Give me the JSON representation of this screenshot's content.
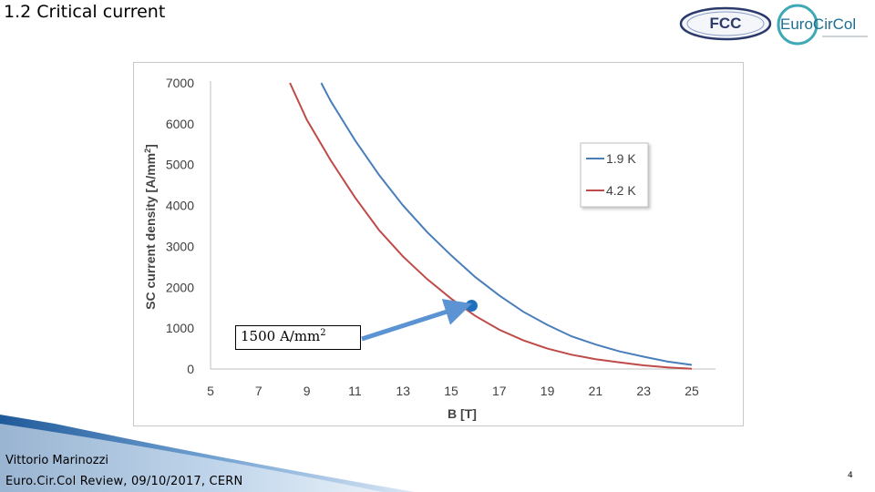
{
  "slide": {
    "title": "1.2 Critical current",
    "author": "Vittorio Marinozzi",
    "event": "Euro.Cir.Col Review, 09/10/2017,  CERN",
    "page_number": "4"
  },
  "logos": {
    "fcc_text": "FCC",
    "eurocircol_text_a": "Euro",
    "eurocircol_text_b": "CirCol"
  },
  "callout": {
    "value_text": "1500 A/mm",
    "superscript": "2"
  },
  "chart_data": {
    "type": "line",
    "xlabel": "B [T]",
    "ylabel": "SC current density [A/mm",
    "ylabel_sup": "2",
    "ylabel_close": "]",
    "xlim": [
      5,
      25
    ],
    "ylim": [
      0,
      7000
    ],
    "x_ticks": [
      5,
      7,
      9,
      11,
      13,
      15,
      17,
      19,
      21,
      23,
      25
    ],
    "y_ticks": [
      0,
      1000,
      2000,
      3000,
      4000,
      5000,
      6000,
      7000
    ],
    "legend_position": "top-right",
    "grid": false,
    "series": [
      {
        "name": "1.9 K",
        "color": "#4a7ebb",
        "points": [
          [
            9.6,
            7000
          ],
          [
            10,
            6550
          ],
          [
            11,
            5600
          ],
          [
            12,
            4750
          ],
          [
            13,
            4000
          ],
          [
            14,
            3350
          ],
          [
            15,
            2780
          ],
          [
            16,
            2250
          ],
          [
            17,
            1800
          ],
          [
            18,
            1400
          ],
          [
            19,
            1080
          ],
          [
            20,
            800
          ],
          [
            21,
            600
          ],
          [
            22,
            430
          ],
          [
            23,
            300
          ],
          [
            24,
            180
          ],
          [
            25,
            100
          ]
        ]
      },
      {
        "name": "4.2 K",
        "color": "#be4b48",
        "points": [
          [
            8.3,
            7000
          ],
          [
            9,
            6100
          ],
          [
            10,
            5100
          ],
          [
            11,
            4200
          ],
          [
            12,
            3400
          ],
          [
            13,
            2750
          ],
          [
            14,
            2200
          ],
          [
            15,
            1720
          ],
          [
            16,
            1300
          ],
          [
            17,
            960
          ],
          [
            18,
            700
          ],
          [
            19,
            500
          ],
          [
            20,
            350
          ],
          [
            21,
            240
          ],
          [
            22,
            160
          ],
          [
            23,
            90
          ],
          [
            24,
            40
          ],
          [
            25,
            5
          ]
        ]
      }
    ],
    "highlight_point": {
      "x": 15.85,
      "y": 1550,
      "color": "#1f6fbf"
    }
  }
}
